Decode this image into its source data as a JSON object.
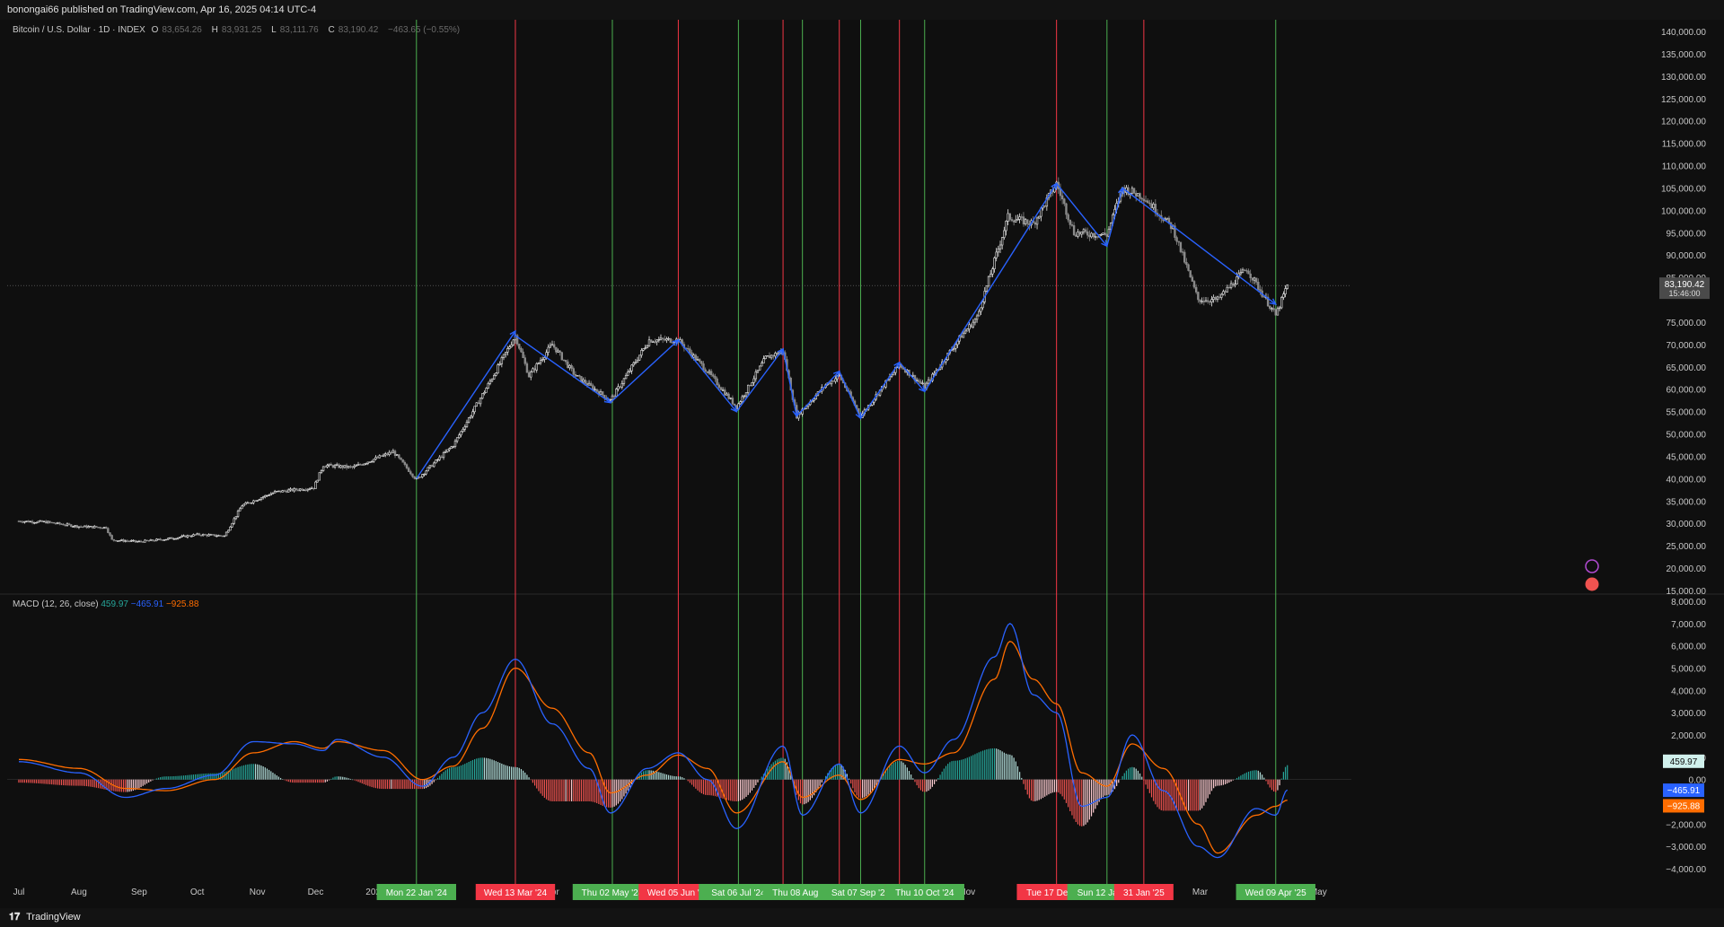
{
  "header": {
    "text": "bonongai66 published on TradingView.com, Apr 16, 2025 04:14 UTC-4"
  },
  "legend": {
    "symbol": "Bitcoin / U.S. Dollar · 1D · INDEX",
    "o_label": "O",
    "o": "83,654.26",
    "h_label": "H",
    "h": "83,931.25",
    "l_label": "L",
    "l": "83,111.76",
    "c_label": "C",
    "c": "83,190.42",
    "change": "−463.65 (−0.55%)"
  },
  "macd_legend": {
    "name": "MACD (12, 26, close)",
    "hist": "459.97",
    "macd": "−465.91",
    "signal": "−925.88"
  },
  "footer": {
    "brand": "TradingView"
  },
  "colors": {
    "up": "#26a69a",
    "down": "#ef5350",
    "macd": "#2962ff",
    "signal": "#ff6d00",
    "green_line": "#4caf50",
    "red_line": "#f23645",
    "wave": "#2962ff"
  },
  "chart_data": [
    {
      "type": "candlestick",
      "title": "Bitcoin / U.S. Dollar · 1D · INDEX",
      "y_ticks": [
        "140,000.00",
        "135,000.00",
        "130,000.00",
        "125,000.00",
        "120,000.00",
        "115,000.00",
        "110,000.00",
        "105,000.00",
        "100,000.00",
        "95,000.00",
        "90,000.00",
        "85,000.00",
        "75,000.00",
        "70,000.00",
        "65,000.00",
        "60,000.00",
        "55,000.00",
        "50,000.00",
        "45,000.00",
        "40,000.00",
        "35,000.00",
        "30,000.00",
        "25,000.00",
        "20,000.00",
        "15,000.00"
      ],
      "ylim": [
        15000,
        140000
      ],
      "x_ticks": [
        "Jul",
        "Aug",
        "Sep",
        "Oct",
        "Nov",
        "Dec",
        "2024",
        "Apr",
        "Nov",
        "Dec",
        "Mar",
        "May"
      ],
      "price_points": [
        [
          "2023-07-01",
          30500
        ],
        [
          "2023-07-15",
          30300
        ],
        [
          "2023-08-01",
          29300
        ],
        [
          "2023-08-15",
          29100
        ],
        [
          "2023-08-18",
          26300
        ],
        [
          "2023-09-01",
          25900
        ],
        [
          "2023-09-15",
          26500
        ],
        [
          "2023-10-01",
          27500
        ],
        [
          "2023-10-15",
          27200
        ],
        [
          "2023-10-24",
          34000
        ],
        [
          "2023-11-10",
          37000
        ],
        [
          "2023-11-30",
          38000
        ],
        [
          "2023-12-05",
          43000
        ],
        [
          "2023-12-20",
          42500
        ],
        [
          "2024-01-10",
          46000
        ],
        [
          "2024-01-22",
          39800
        ],
        [
          "2024-02-10",
          47500
        ],
        [
          "2024-02-28",
          61000
        ],
        [
          "2024-03-13",
          72000
        ],
        [
          "2024-03-20",
          63000
        ],
        [
          "2024-04-01",
          70000
        ],
        [
          "2024-04-13",
          63000
        ],
        [
          "2024-05-01",
          57500
        ],
        [
          "2024-05-21",
          71000
        ],
        [
          "2024-06-05",
          71000
        ],
        [
          "2024-06-20",
          64000
        ],
        [
          "2024-07-05",
          56000
        ],
        [
          "2024-07-20",
          67000
        ],
        [
          "2024-07-29",
          68500
        ],
        [
          "2024-08-05",
          54000
        ],
        [
          "2024-08-20",
          61000
        ],
        [
          "2024-08-27",
          63000
        ],
        [
          "2024-09-07",
          54000
        ],
        [
          "2024-09-27",
          65500
        ],
        [
          "2024-10-10",
          60500
        ],
        [
          "2024-10-29",
          72000
        ],
        [
          "2024-11-06",
          76000
        ],
        [
          "2024-11-22",
          98500
        ],
        [
          "2024-12-05",
          97000
        ],
        [
          "2024-12-17",
          106000
        ],
        [
          "2024-12-26",
          95000
        ],
        [
          "2025-01-12",
          94500
        ],
        [
          "2025-01-20",
          105000
        ],
        [
          "2025-01-31",
          103000
        ],
        [
          "2025-02-15",
          96000
        ],
        [
          "2025-02-28",
          80000
        ],
        [
          "2025-03-10",
          80000
        ],
        [
          "2025-03-25",
          87000
        ],
        [
          "2025-04-09",
          76500
        ],
        [
          "2025-04-15",
          83190
        ]
      ],
      "last_price": "83,190.42",
      "countdown": "15:46:00",
      "trend_lines": [
        [
          "2024-01-22",
          40000,
          "2024-03-13",
          73000
        ],
        [
          "2024-03-13",
          72000,
          "2024-05-01",
          57000
        ],
        [
          "2024-05-01",
          57000,
          "2024-06-05",
          71000
        ],
        [
          "2024-06-05",
          71000,
          "2024-07-05",
          55000
        ],
        [
          "2024-07-05",
          55000,
          "2024-07-29",
          69000
        ],
        [
          "2024-07-29",
          69000,
          "2024-08-05",
          54000
        ],
        [
          "2024-08-05",
          54000,
          "2024-08-27",
          64000
        ],
        [
          "2024-08-27",
          64000,
          "2024-09-07",
          53500
        ],
        [
          "2024-09-07",
          53500,
          "2024-09-27",
          66000
        ],
        [
          "2024-09-27",
          66000,
          "2024-10-10",
          59500
        ],
        [
          "2024-10-10",
          59500,
          "2024-12-17",
          106000
        ],
        [
          "2024-12-17",
          106000,
          "2025-01-12",
          92000
        ],
        [
          "2025-01-12",
          92000,
          "2025-01-20",
          105000
        ],
        [
          "2025-01-20",
          105000,
          "2025-04-09",
          79000
        ]
      ]
    },
    {
      "type": "line",
      "title": "MACD (12, 26, close)",
      "y_ticks": [
        "8,000.00",
        "7,000.00",
        "6,000.00",
        "5,000.00",
        "4,000.00",
        "3,000.00",
        "2,000.00",
        "1,000.00",
        "0.00",
        "−2,000.00",
        "−3,000.00",
        "−4,000.00"
      ],
      "ylim": [
        -4000,
        8000
      ],
      "series": [
        {
          "name": "MACD",
          "points": [
            [
              "2023-07-01",
              800
            ],
            [
              "2023-08-01",
              300
            ],
            [
              "2023-08-25",
              -800
            ],
            [
              "2023-09-15",
              -400
            ],
            [
              "2023-10-10",
              200
            ],
            [
              "2023-10-30",
              1700
            ],
            [
              "2023-11-20",
              1600
            ],
            [
              "2023-12-05",
              1300
            ],
            [
              "2023-12-12",
              1800
            ],
            [
              "2024-01-05",
              1000
            ],
            [
              "2024-01-25",
              -300
            ],
            [
              "2024-02-10",
              1000
            ],
            [
              "2024-02-25",
              3000
            ],
            [
              "2024-03-13",
              5400
            ],
            [
              "2024-04-01",
              2500
            ],
            [
              "2024-04-20",
              500
            ],
            [
              "2024-05-01",
              -1500
            ],
            [
              "2024-05-20",
              500
            ],
            [
              "2024-06-05",
              1200
            ],
            [
              "2024-06-20",
              0
            ],
            [
              "2024-07-05",
              -2200
            ],
            [
              "2024-07-29",
              1500
            ],
            [
              "2024-08-08",
              -1600
            ],
            [
              "2024-08-27",
              700
            ],
            [
              "2024-09-07",
              -1500
            ],
            [
              "2024-09-27",
              1500
            ],
            [
              "2024-10-10",
              300
            ],
            [
              "2024-10-25",
              1800
            ],
            [
              "2024-11-15",
              5500
            ],
            [
              "2024-11-23",
              7000
            ],
            [
              "2024-12-05",
              3800
            ],
            [
              "2024-12-17",
              3000
            ],
            [
              "2024-12-30",
              -1200
            ],
            [
              "2025-01-12",
              -800
            ],
            [
              "2025-01-25",
              2000
            ],
            [
              "2025-02-10",
              -500
            ],
            [
              "2025-02-28",
              -3000
            ],
            [
              "2025-03-10",
              -3500
            ],
            [
              "2025-03-30",
              -1300
            ],
            [
              "2025-04-09",
              -1600
            ],
            [
              "2025-04-15",
              -466
            ]
          ]
        },
        {
          "name": "Signal",
          "points": [
            [
              "2023-07-01",
              900
            ],
            [
              "2023-08-01",
              500
            ],
            [
              "2023-08-25",
              -400
            ],
            [
              "2023-09-15",
              -500
            ],
            [
              "2023-10-10",
              0
            ],
            [
              "2023-10-30",
              1200
            ],
            [
              "2023-11-20",
              1700
            ],
            [
              "2023-12-05",
              1400
            ],
            [
              "2023-12-12",
              1700
            ],
            [
              "2024-01-05",
              1300
            ],
            [
              "2024-01-25",
              0
            ],
            [
              "2024-02-10",
              600
            ],
            [
              "2024-02-25",
              2300
            ],
            [
              "2024-03-13",
              5000
            ],
            [
              "2024-04-01",
              3200
            ],
            [
              "2024-04-20",
              1200
            ],
            [
              "2024-05-01",
              -600
            ],
            [
              "2024-05-20",
              200
            ],
            [
              "2024-06-05",
              1100
            ],
            [
              "2024-06-20",
              500
            ],
            [
              "2024-07-05",
              -1500
            ],
            [
              "2024-07-29",
              800
            ],
            [
              "2024-08-08",
              -800
            ],
            [
              "2024-08-27",
              200
            ],
            [
              "2024-09-07",
              -900
            ],
            [
              "2024-09-27",
              900
            ],
            [
              "2024-10-10",
              700
            ],
            [
              "2024-10-25",
              1200
            ],
            [
              "2024-11-15",
              4500
            ],
            [
              "2024-11-23",
              6200
            ],
            [
              "2024-12-05",
              4500
            ],
            [
              "2024-12-17",
              3400
            ],
            [
              "2024-12-30",
              300
            ],
            [
              "2025-01-12",
              -300
            ],
            [
              "2025-01-25",
              1600
            ],
            [
              "2025-02-10",
              500
            ],
            [
              "2025-02-28",
              -2000
            ],
            [
              "2025-03-10",
              -3300
            ],
            [
              "2025-03-30",
              -1600
            ],
            [
              "2025-04-09",
              -1200
            ],
            [
              "2025-04-15",
              -926
            ]
          ]
        }
      ],
      "value_tags": [
        "459.97",
        "−465.91",
        "−925.88"
      ]
    }
  ],
  "event_lines": [
    {
      "date": "2024-01-22",
      "label": "Mon 22 Jan '24",
      "color": "green"
    },
    {
      "date": "2024-03-13",
      "label": "Wed 13 Mar '24",
      "color": "red"
    },
    {
      "date": "2024-05-02",
      "label": "Thu 02 May '24",
      "color": "green"
    },
    {
      "date": "2024-06-05",
      "label": "Wed 05 Jun '24",
      "color": "red"
    },
    {
      "date": "2024-07-06",
      "label": "Sat 06 Jul '24",
      "color": "green"
    },
    {
      "date": "2024-07-29",
      "label": "Jul '2",
      "color": "red"
    },
    {
      "date": "2024-08-08",
      "label": "Thu 08 Aug '24",
      "color": "green"
    },
    {
      "date": "2024-08-27",
      "label": "5",
      "color": "red"
    },
    {
      "date": "2024-09-07",
      "label": "Sat 07 Sep '24",
      "color": "green"
    },
    {
      "date": "2024-09-27",
      "label": "p '2",
      "color": "red"
    },
    {
      "date": "2024-10-10",
      "label": "Thu 10 Oct '24",
      "color": "green"
    },
    {
      "date": "2024-12-17",
      "label": "Tue 17 Dec '24",
      "color": "red"
    },
    {
      "date": "2025-01-12",
      "label": "Sun 12 Jan '25",
      "color": "green"
    },
    {
      "date": "2025-01-31",
      "label": "31 Jan '25",
      "color": "red"
    },
    {
      "date": "2025-04-09",
      "label": "Wed 09 Apr '25",
      "color": "green"
    }
  ]
}
